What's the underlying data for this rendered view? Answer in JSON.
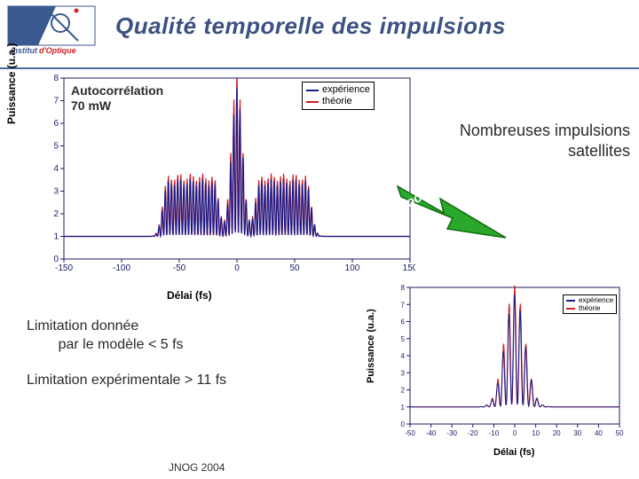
{
  "slide": {
    "title": "Qualité temporelle des impulsions",
    "footer": "JNOG 2004"
  },
  "logo": {
    "text1": "Institut",
    "text2": "d'Optique",
    "bg_left": "#3a5a8f",
    "bg_right": "#ffffff",
    "border": "#3a5a8f",
    "red": "#d21f1f"
  },
  "annotations": {
    "autocorr_line1": "Autocorrélation",
    "autocorr_line2": "70 mW",
    "satellites_line1": "Nombreuses impulsions",
    "satellites_line2": "satellites",
    "zoom": "Zoom",
    "limit1_line1": "Limitation donnée",
    "limit1_line2": "par le modèle < 5 fs",
    "limit2": "Limitation expérimentale > 11 fs"
  },
  "legend": {
    "exp": "expérience",
    "theo": "théorie",
    "exp_color": "#1a1a8a",
    "theo_color": "#d21f1f"
  },
  "main_chart": {
    "type": "line",
    "xlabel": "Délai (fs)",
    "ylabel": "Puissance (u.a.)",
    "xlim": [
      -150,
      150
    ],
    "ylim": [
      0,
      8
    ],
    "xtick_step": 50,
    "ytick_step": 1,
    "axis_color": "#1a1a6a",
    "grid": false,
    "background_color": "#ffffff",
    "line_width": 1.2,
    "carrier_period_fs": 2.7,
    "envelope_fwhm_fs": 11,
    "baseline": 1.0,
    "peak": 8.0,
    "satellite_delays": [
      -60,
      -50,
      -40,
      -30,
      -20,
      20,
      30,
      40,
      50,
      60
    ],
    "satellite_amp": 0.35
  },
  "zoom_chart": {
    "type": "line",
    "xlabel": "Délai (fs)",
    "ylabel": "Puissance (u.a.)",
    "xlim": [
      -50,
      50
    ],
    "ylim": [
      0,
      8
    ],
    "xtick_step": 10,
    "ytick_step": 1,
    "axis_color": "#1a1a6a",
    "line_width": 1.0,
    "carrier_period_fs": 2.7,
    "envelope_fwhm_fs": 11,
    "baseline": 1.0,
    "peak": 8.0
  },
  "zoom_arrow": {
    "fill": "#2aa82a",
    "stroke": "#0e6a0e"
  }
}
